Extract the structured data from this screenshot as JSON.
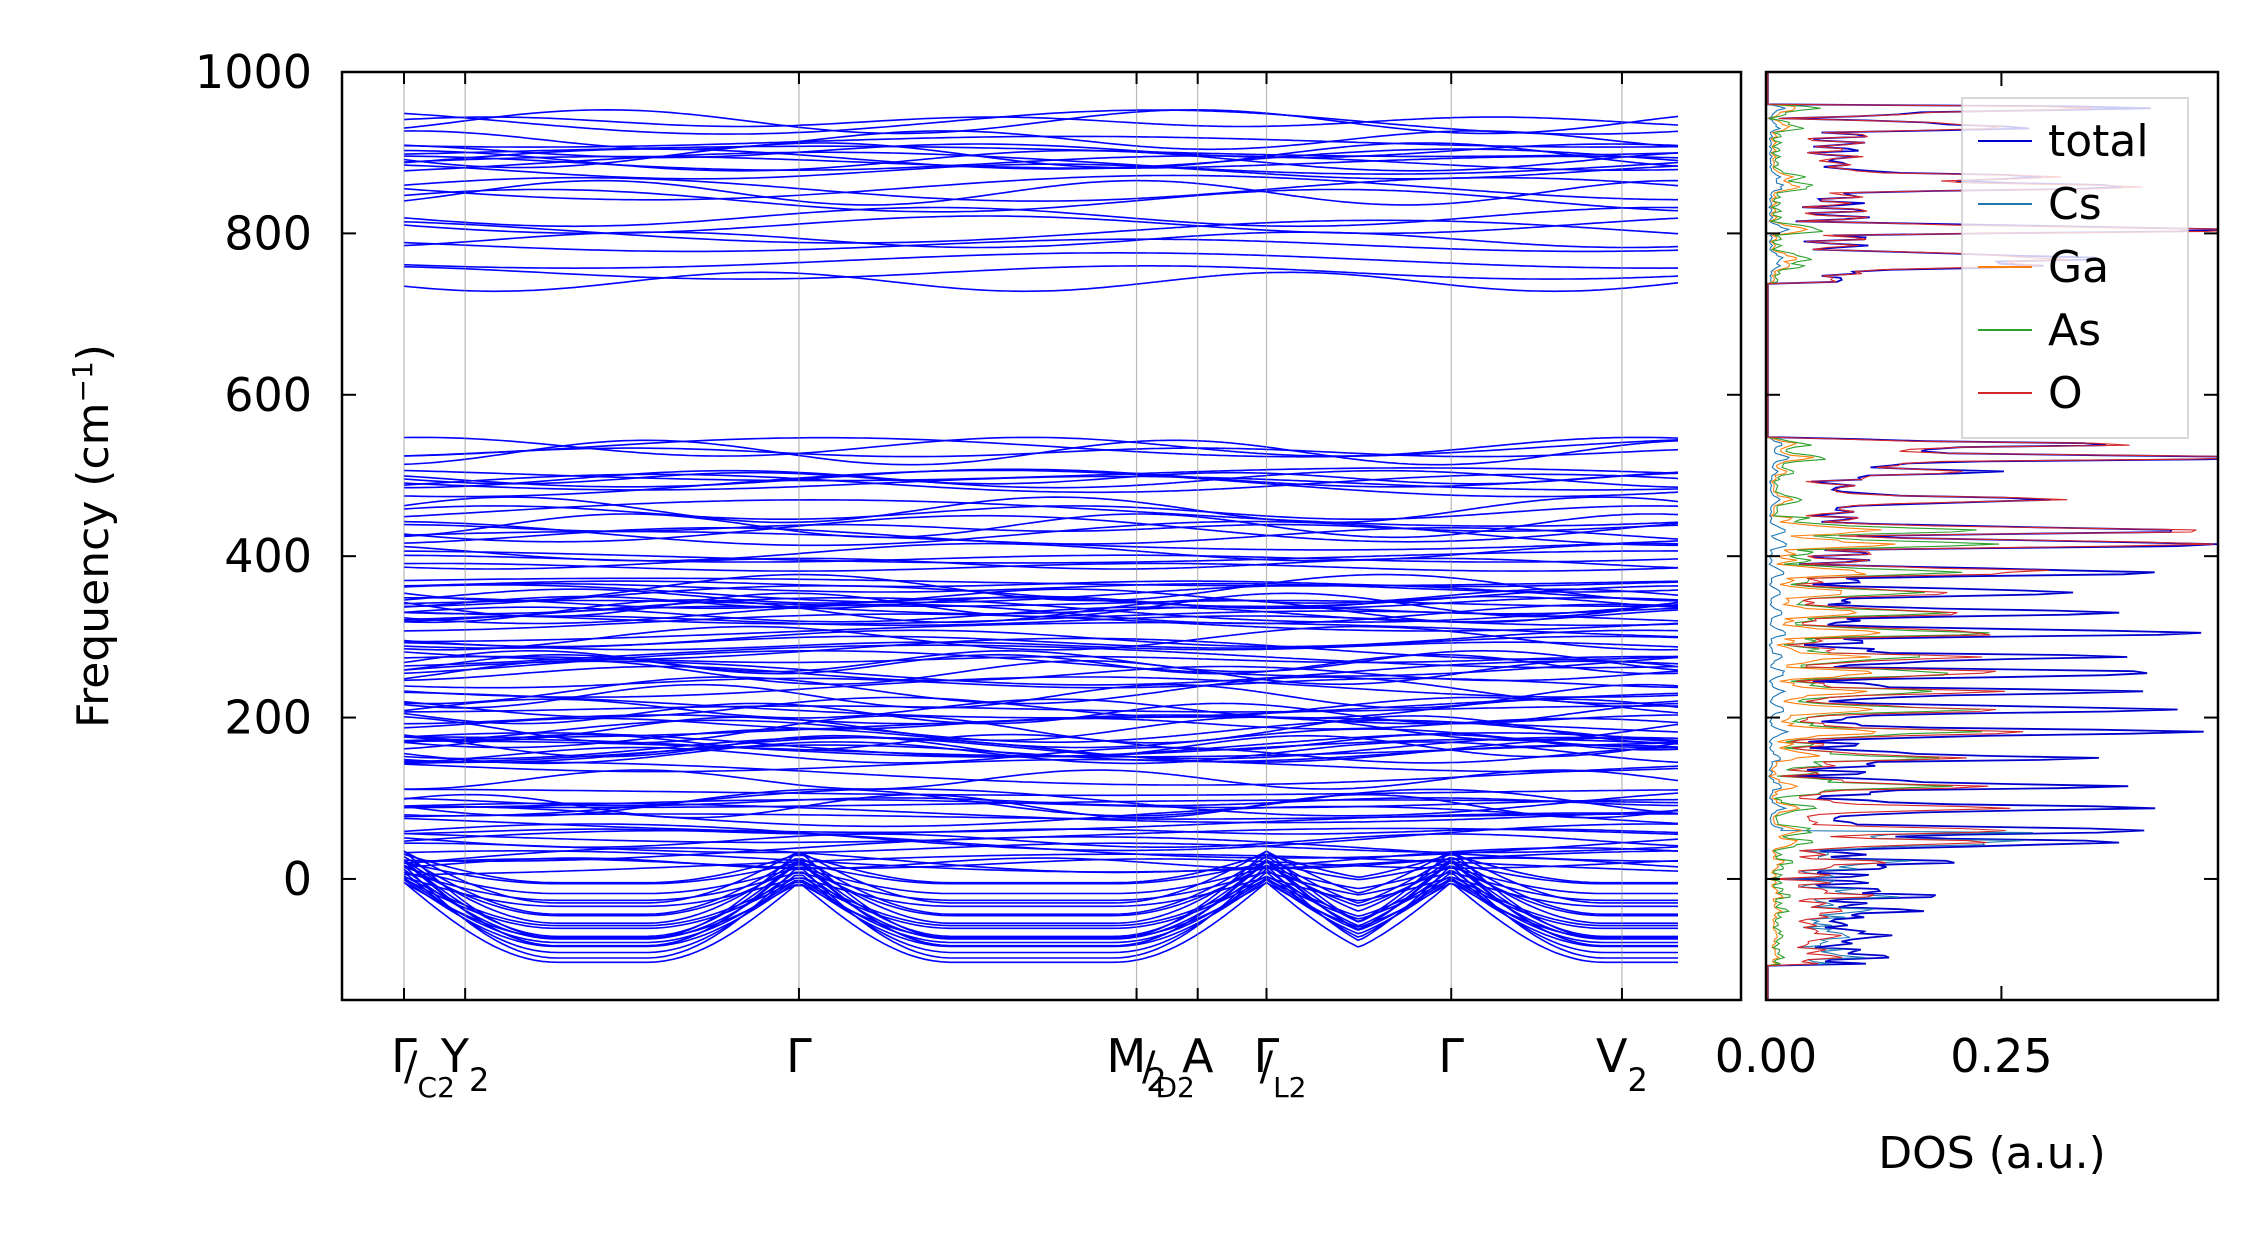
{
  "chart_data": [
    {
      "type": "line",
      "panel": "phonon-band-structure",
      "ylabel": "Frequency (cm",
      "ylabel_sup": "−1",
      "ylabel_tail": ")",
      "ylim": [
        -150,
        1000
      ],
      "yticks": [
        0,
        200,
        400,
        600,
        800,
        1000
      ],
      "grid": false,
      "kpath": [
        {
          "label": "Γ",
          "sub": "",
          "position": 0.0
        },
        {
          "label": "Y",
          "sub": "2",
          "position": 0.048
        },
        {
          "label": "Γ",
          "sub": "",
          "position": 0.31
        },
        {
          "label": "M",
          "sub": "2",
          "position": 0.575
        },
        {
          "label": "A",
          "sub": "",
          "position": 0.623
        },
        {
          "label": "Γ",
          "sub": "",
          "position": 0.677
        },
        {
          "label": "Γ",
          "sub": "",
          "position": 0.822
        },
        {
          "label": "V",
          "sub": "2",
          "position": 0.956
        }
      ],
      "extra_labels": [
        {
          "label": "/",
          "sub": "C2",
          "position": 0.02
        },
        {
          "label": "/",
          "sub": "D2",
          "position": 0.6
        },
        {
          "label": "/",
          "sub": "L2",
          "position": 0.69
        }
      ],
      "segments": [
        [
          0.0,
          0.575
        ],
        [
          0.575,
          0.677
        ],
        [
          0.677,
          1.0
        ]
      ],
      "band_color": "#0000ff",
      "bands_upper_range": [
        740,
        955
      ],
      "bands_middle_range": [
        -10,
        540
      ],
      "bands_acoustic_min": -100,
      "gap": [
        545,
        740
      ]
    },
    {
      "type": "line",
      "panel": "density-of-states",
      "xlabel": "DOS (a.u.)",
      "xticks": [
        "0.00",
        "0.25"
      ],
      "xlim": [
        0.0,
        0.48
      ],
      "ylim": [
        -150,
        1000
      ],
      "legend_position": "top-right",
      "series": [
        {
          "name": "total",
          "color": "#0000cc"
        },
        {
          "name": "Cs",
          "color": "#1f77b4"
        },
        {
          "name": "Ga",
          "color": "#ff7f0e"
        },
        {
          "name": "As",
          "color": "#2ca02c"
        },
        {
          "name": "O",
          "color": "#d62728"
        }
      ]
    }
  ]
}
